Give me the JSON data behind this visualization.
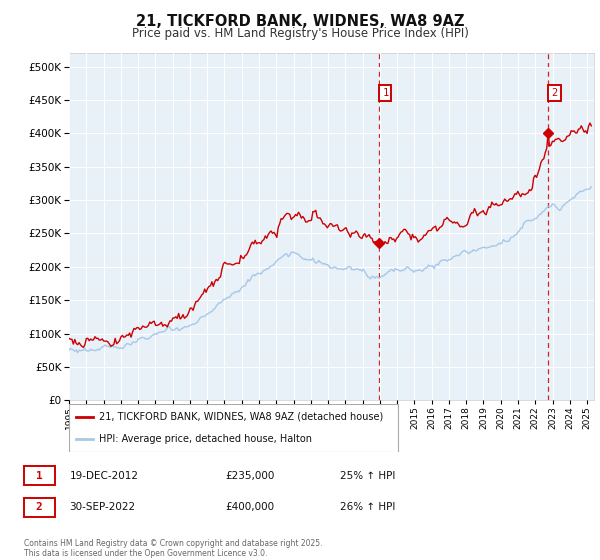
{
  "title": "21, TICKFORD BANK, WIDNES, WA8 9AZ",
  "subtitle": "Price paid vs. HM Land Registry's House Price Index (HPI)",
  "legend_line1": "21, TICKFORD BANK, WIDNES, WA8 9AZ (detached house)",
  "legend_line2": "HPI: Average price, detached house, Halton",
  "annotation1_label": "1",
  "annotation1_date": "19-DEC-2012",
  "annotation1_price": 235000,
  "annotation1_hpi_text": "25% ↑ HPI",
  "annotation2_label": "2",
  "annotation2_date": "30-SEP-2022",
  "annotation2_price": 400000,
  "annotation2_hpi_text": "26% ↑ HPI",
  "footer_line1": "Contains HM Land Registry data © Crown copyright and database right 2025.",
  "footer_line2": "This data is licensed under the Open Government Licence v3.0.",
  "hpi_color": "#a8c8e8",
  "price_color": "#cc0000",
  "plot_bg": "#e8f0f8",
  "grid_color": "#ffffff",
  "ann_box_color": "#cc0000",
  "vline_color": "#cc0000",
  "ylim_max": 520000,
  "ylim_min": 0,
  "xmin": 1995.0,
  "xmax": 2025.4,
  "ann1_x": 2012.96,
  "ann2_x": 2022.75
}
